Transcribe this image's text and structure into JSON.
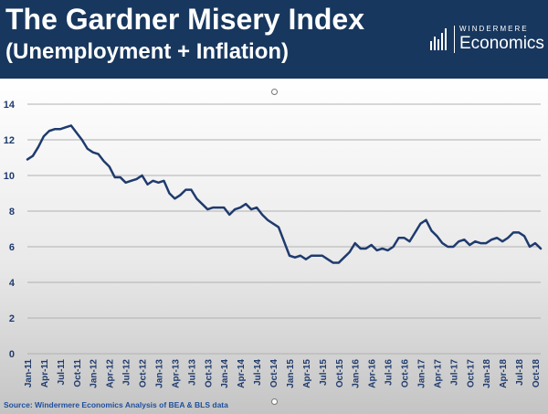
{
  "header": {
    "title": "The Gardner Misery Index",
    "subtitle": "(Unemployment + Inflation)",
    "brand_top": "WINDERMERE",
    "brand_bottom": "Economics",
    "brand_icon": "bar-chart-logo-icon"
  },
  "source": "Source: Windermere Economics Analysis of BEA & BLS data",
  "colors": {
    "header_bg": "#17375e",
    "line": "#1f3b6e",
    "source_text": "#1f4e9b"
  },
  "chart_data": {
    "type": "line",
    "title": "",
    "xlabel": "",
    "ylabel": "",
    "ylim": [
      0,
      14
    ],
    "yticks": [
      0,
      2,
      4,
      6,
      8,
      10,
      12,
      14
    ],
    "grid": true,
    "legend": "none",
    "xtick_labels": [
      "Jan-11",
      "Apr-11",
      "Jul-11",
      "Oct-11",
      "Jan-12",
      "Apr-12",
      "Jul-12",
      "Oct-12",
      "Jan-13",
      "Apr-13",
      "Jul-13",
      "Oct-13",
      "Jan-14",
      "Apr-14",
      "Jul-14",
      "Oct-14",
      "Jan-15",
      "Apr-15",
      "Jul-15",
      "Oct-15",
      "Jan-16",
      "Apr-16",
      "Jul-16",
      "Oct-16",
      "Jan-17",
      "Apr-17",
      "Jul-17",
      "Oct-17",
      "Jan-18",
      "Apr-18",
      "Jul-18",
      "Oct-18"
    ],
    "series": [
      {
        "name": "",
        "values": [
          10.9,
          11.1,
          11.6,
          12.2,
          12.5,
          12.6,
          12.6,
          12.7,
          12.8,
          12.4,
          12.0,
          11.5,
          11.3,
          11.2,
          10.8,
          10.5,
          9.9,
          9.9,
          9.6,
          9.7,
          9.8,
          10.0,
          9.5,
          9.7,
          9.6,
          9.7,
          9.0,
          8.7,
          8.9,
          9.2,
          9.2,
          8.7,
          8.4,
          8.1,
          8.2,
          8.2,
          8.2,
          7.8,
          8.1,
          8.2,
          8.4,
          8.1,
          8.2,
          7.8,
          7.5,
          7.3,
          7.1,
          6.3,
          5.5,
          5.4,
          5.5,
          5.3,
          5.5,
          5.5,
          5.5,
          5.3,
          5.1,
          5.1,
          5.4,
          5.7,
          6.2,
          5.9,
          5.9,
          6.1,
          5.8,
          5.9,
          5.8,
          6.0,
          6.5,
          6.5,
          6.3,
          6.8,
          7.3,
          7.5,
          6.9,
          6.6,
          6.2,
          6.0,
          6.0,
          6.3,
          6.4,
          6.1,
          6.3,
          6.2,
          6.2,
          6.4,
          6.5,
          6.3,
          6.5,
          6.8,
          6.8,
          6.6,
          6.0,
          6.2,
          5.9
        ]
      }
    ]
  }
}
